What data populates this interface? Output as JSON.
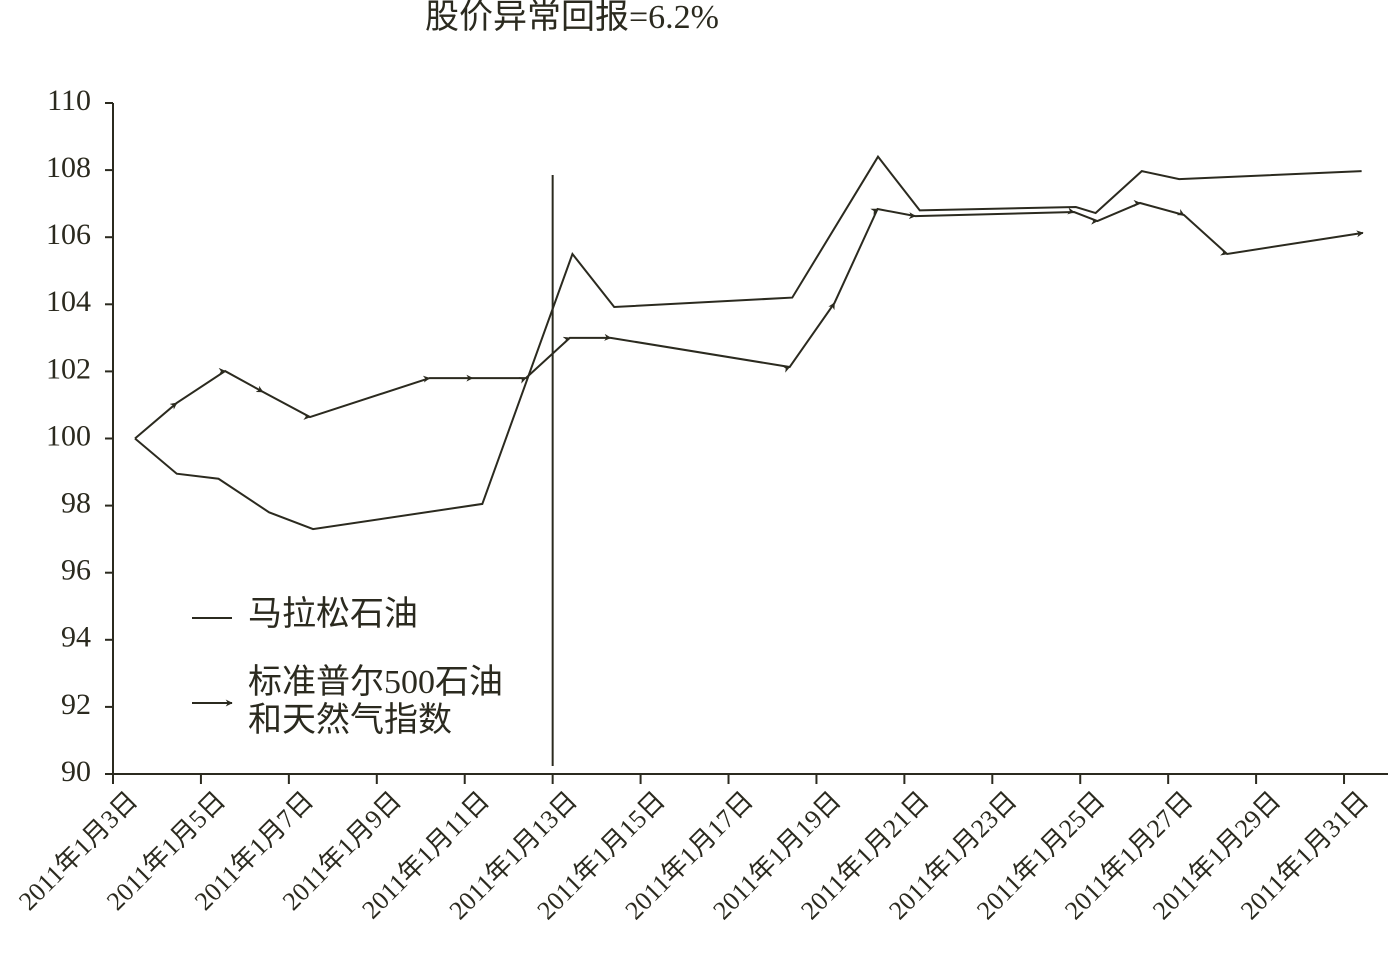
{
  "chart_data": {
    "type": "line",
    "title": "股价异常回报=6.2%",
    "xlim": [
      3,
      32
    ],
    "xticks": [
      {
        "value": 3,
        "label": "2011年1月3日"
      },
      {
        "value": 5,
        "label": "2011年1月5日"
      },
      {
        "value": 7,
        "label": "2011年1月7日"
      },
      {
        "value": 9,
        "label": "2011年1月9日"
      },
      {
        "value": 11,
        "label": "2011年1月11日"
      },
      {
        "value": 13,
        "label": "2011年1月13日"
      },
      {
        "value": 15,
        "label": "2011年1月15日"
      },
      {
        "value": 17,
        "label": "2011年1月17日"
      },
      {
        "value": 19,
        "label": "2011年1月19日"
      },
      {
        "value": 21,
        "label": "2011年1月21日"
      },
      {
        "value": 23,
        "label": "2011年1月23日"
      },
      {
        "value": 25,
        "label": "2011年1月25日"
      },
      {
        "value": 27,
        "label": "2011年1月27日"
      },
      {
        "value": 29,
        "label": "2011年1月29日"
      },
      {
        "value": 31,
        "label": "2011年1月31日"
      }
    ],
    "ylim": [
      90,
      110
    ],
    "yticks": [
      90,
      92,
      94,
      96,
      98,
      100,
      102,
      104,
      106,
      108,
      110
    ],
    "event_x": 13,
    "series": [
      {
        "name": "马拉松石油",
        "color": "#2b2a1f",
        "marker": "none",
        "x": [
          3.5,
          4.45,
          5.4,
          6.55,
          7.55,
          11.4,
          13.45,
          14.4,
          18.45,
          20.4,
          21.35,
          24.9,
          25.35,
          26.4,
          27.25,
          31.4
        ],
        "values": [
          100,
          98.95,
          98.8,
          97.8,
          97.3,
          98.05,
          105.5,
          103.92,
          104.2,
          108.4,
          106.8,
          106.9,
          106.72,
          107.97,
          107.73,
          107.97
        ]
      },
      {
        "name": "标准普尔500石油和天然气指数",
        "color": "#2b2a1f",
        "marker": "arrow",
        "x": [
          3.5,
          4.45,
          5.55,
          6.41,
          7.48,
          10.2,
          11.18,
          12.39,
          13.39,
          14.32,
          18.39,
          19.41,
          20.39,
          21.25,
          24.86,
          25.39,
          26.36,
          27.36,
          28.34,
          31.43
        ],
        "values": [
          100,
          101.06,
          102.01,
          101.39,
          100.64,
          101.8,
          101.8,
          101.8,
          103.0,
          103.0,
          102.13,
          104.04,
          106.84,
          106.63,
          106.75,
          106.48,
          107.02,
          106.66,
          105.5,
          106.13
        ]
      }
    ]
  }
}
